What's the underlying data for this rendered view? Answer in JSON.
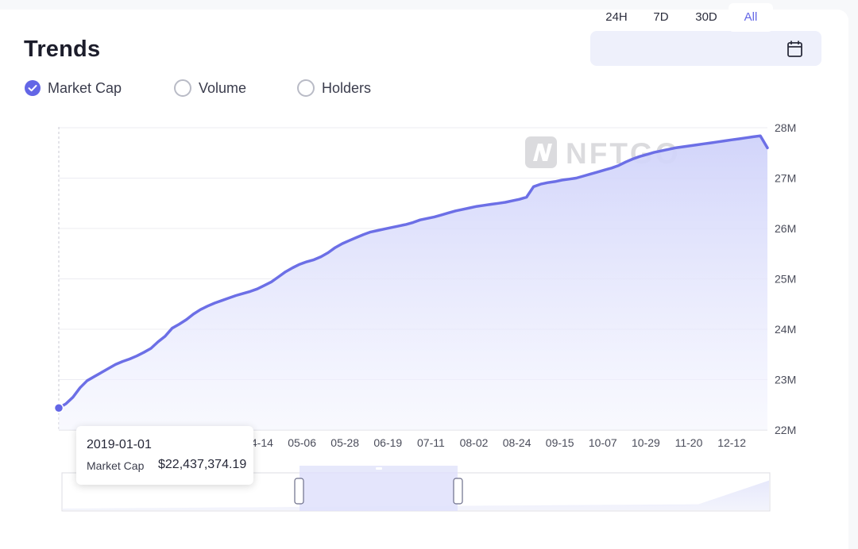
{
  "header": {
    "title": "Trends"
  },
  "range_tabs": [
    {
      "label": "24H",
      "active": false
    },
    {
      "label": "7D",
      "active": false
    },
    {
      "label": "30D",
      "active": false
    },
    {
      "label": "All",
      "active": true
    }
  ],
  "calendar_icon": "calendar-icon",
  "metrics": [
    {
      "label": "Market Cap",
      "checked": true
    },
    {
      "label": "Volume",
      "checked": false
    },
    {
      "label": "Holders",
      "checked": false
    }
  ],
  "watermark": "NFTGO",
  "tooltip": {
    "date": "2019-01-01",
    "series": "Market Cap",
    "value": "$22,437,374.19"
  },
  "colors": {
    "accent": "#6366e6",
    "line": "#6c6fe6",
    "area_top": "#d5d8fb",
    "grid": "#ececf2"
  },
  "chart_data": {
    "type": "area",
    "series": [
      {
        "name": "Market Cap",
        "unit": "M",
        "x_index": [
          0,
          1,
          2,
          3,
          4,
          5,
          6,
          7,
          8,
          9,
          10,
          11,
          12,
          13,
          14,
          15,
          16,
          17,
          18,
          19,
          20,
          21,
          22,
          23,
          24,
          25,
          26,
          27,
          28,
          29,
          30,
          31,
          32,
          33,
          34,
          35,
          36,
          37,
          38,
          39,
          40,
          41,
          42,
          43,
          44,
          45,
          46,
          47,
          48,
          49,
          50,
          51,
          52,
          53,
          54,
          55,
          56,
          57,
          58,
          59,
          60,
          61,
          62,
          63,
          64,
          65,
          66,
          67,
          68,
          69,
          70,
          71,
          72,
          73,
          74,
          75,
          76,
          77,
          78,
          79,
          80,
          81,
          82,
          83,
          84,
          85,
          86,
          87,
          88,
          89,
          90,
          91,
          92,
          93,
          94,
          95,
          96,
          97,
          98,
          99,
          100
        ],
        "values": [
          22.437,
          22.52,
          22.65,
          22.84,
          22.98,
          23.06,
          23.14,
          23.22,
          23.3,
          23.36,
          23.41,
          23.47,
          23.54,
          23.62,
          23.75,
          23.86,
          24.02,
          24.1,
          24.19,
          24.3,
          24.39,
          24.46,
          24.52,
          24.57,
          24.62,
          24.67,
          24.71,
          24.75,
          24.8,
          24.87,
          24.94,
          25.04,
          25.14,
          25.22,
          25.29,
          25.34,
          25.38,
          25.44,
          25.52,
          25.62,
          25.7,
          25.76,
          25.82,
          25.88,
          25.93,
          25.96,
          25.99,
          26.02,
          26.05,
          26.08,
          26.12,
          26.17,
          26.2,
          26.23,
          26.27,
          26.31,
          26.35,
          26.38,
          26.41,
          26.44,
          26.46,
          26.48,
          26.5,
          26.52,
          26.55,
          26.58,
          26.62,
          26.83,
          26.88,
          26.91,
          26.93,
          26.96,
          26.98,
          27.0,
          27.04,
          27.08,
          27.12,
          27.16,
          27.2,
          27.25,
          27.32,
          27.38,
          27.43,
          27.47,
          27.51,
          27.54,
          27.57,
          27.6,
          27.62,
          27.64,
          27.66,
          27.68,
          27.7,
          27.72,
          27.74,
          27.76,
          27.78,
          27.8,
          27.82,
          27.84,
          27.6
        ]
      }
    ],
    "x_tick_labels": [
      "04-14",
      "05-06",
      "05-28",
      "06-19",
      "07-11",
      "08-02",
      "08-24",
      "09-15",
      "10-07",
      "10-29",
      "11-20",
      "12-12"
    ],
    "y_tick_labels": [
      "22M",
      "23M",
      "24M",
      "25M",
      "26M",
      "27M",
      "28M"
    ],
    "ylim": [
      22,
      28
    ],
    "grid": true,
    "title": "",
    "xlabel": "",
    "ylabel": ""
  }
}
